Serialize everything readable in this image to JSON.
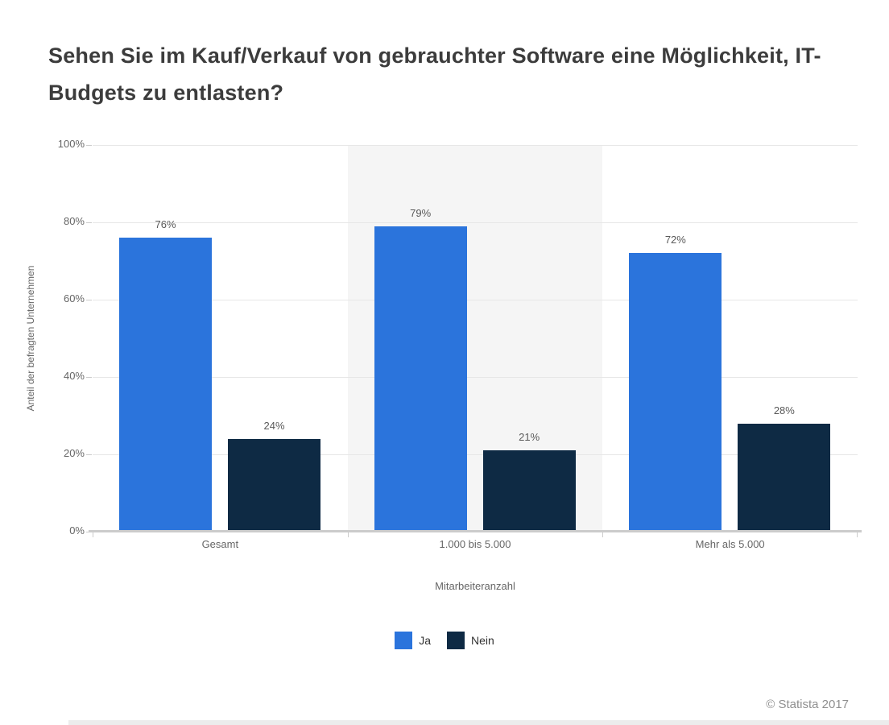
{
  "header": {
    "title": "Sehen Sie im Kauf/Verkauf von gebrauchter Software eine Möglichkeit, IT-Budgets zu entlasten?"
  },
  "footer": {
    "copyright": "© Statista 2017"
  },
  "chart_data": {
    "type": "bar",
    "title": "Sehen Sie im Kauf/Verkauf von gebrauchter Software eine Möglichkeit, IT-Budgets zu entlasten?",
    "categories": [
      "Gesamt",
      "1.000 bis 5.000",
      "Mehr als 5.000"
    ],
    "series": [
      {
        "name": "Ja",
        "color": "#2b74dc",
        "values": [
          76,
          79,
          72
        ]
      },
      {
        "name": "Nein",
        "color": "#0e2a44",
        "values": [
          24,
          21,
          28
        ]
      }
    ],
    "value_suffix": "%",
    "xlabel": "Mitarbeiteranzahl",
    "ylabel": "Anteil der befragten Unternehmen",
    "ylim": [
      0,
      100
    ],
    "ytick_step": 20,
    "yticks": [
      "0%",
      "20%",
      "40%",
      "60%",
      "80%",
      "100%"
    ],
    "grid": true,
    "plot_band_category_index": 1,
    "legend_position": "bottom",
    "colors": {
      "grid": "#e7e7e7",
      "axis_line": "#cccccc",
      "plot_band": "#f5f5f5",
      "tick_text": "#666666",
      "value_label": "#595959",
      "legend_text": "#333333",
      "title_text": "#3c3c3c",
      "footer_text": "#8f8f8f",
      "bottom_strip": "#ececec"
    }
  }
}
